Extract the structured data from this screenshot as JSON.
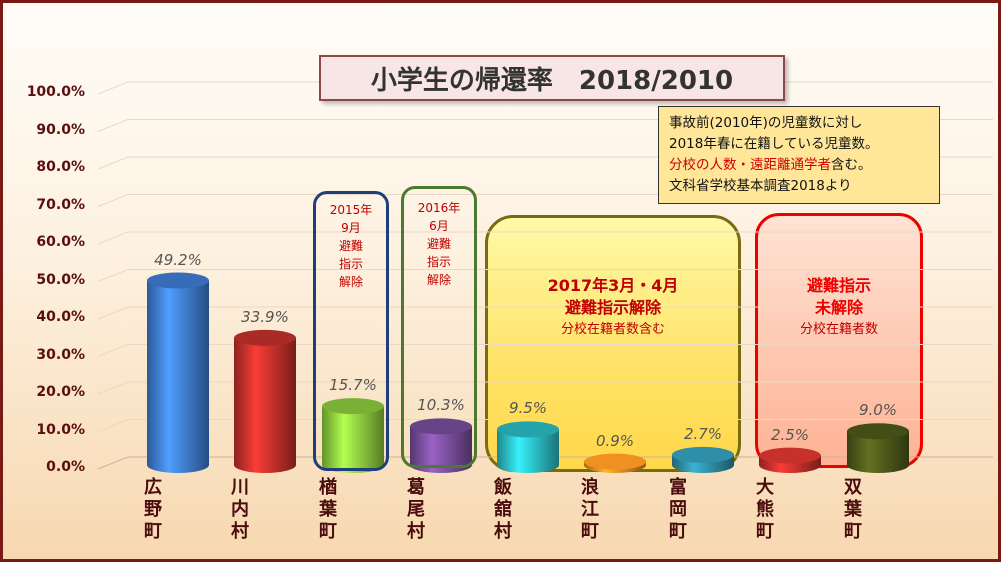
{
  "title": "小学生の帰還率　2018/2010",
  "note": {
    "line1": "事故前(2010年)の児童数に対し",
    "line2": "2018年春に在籍している児童数。",
    "line3_red": "分校の人数・遠距離通学者",
    "line3_tail": "含む。",
    "line4": "文科省学校基本調査2018より"
  },
  "annotations": {
    "a2015": "2015年\n9月\n避難\n指示\n解除",
    "a2016": "2016年\n6月\n避難\n指示\n解除",
    "a2017_main": "2017年3月・4月\n避難指示解除",
    "a2017_sub": "分校在籍者数含む",
    "unlifted_main": "避難指示\n未解除",
    "unlifted_sub": "分校在籍者数"
  },
  "colors": {
    "frame": "#7a1a14",
    "bars": [
      "#3f7fd8",
      "#c8312b",
      "#8fcf3f",
      "#7a4f9e",
      "#2cc0c8",
      "#f09020",
      "#2f8fa8",
      "#c8312b",
      "#4f5a1a"
    ]
  },
  "chart_data": {
    "type": "bar",
    "categories": [
      "広野町",
      "川内村",
      "楢葉町",
      "葛尾村",
      "飯舘村",
      "浪江町",
      "富岡町",
      "大熊町",
      "双葉町"
    ],
    "values": [
      49.2,
      33.9,
      15.7,
      10.3,
      9.5,
      0.9,
      2.7,
      2.5,
      9.0
    ],
    "value_labels": [
      "49.2%",
      "33.9%",
      "15.7%",
      "10.3%",
      "9.5%",
      "0.9%",
      "2.7%",
      "2.5%",
      "9.0%"
    ],
    "y_tick_labels": [
      "0.0%",
      "10.0%",
      "20.0%",
      "30.0%",
      "40.0%",
      "50.0%",
      "60.0%",
      "70.0%",
      "80.0%",
      "90.0%",
      "100.0%"
    ],
    "ylim": [
      0,
      100
    ],
    "grid": true,
    "title": "小学生の帰還率　2018/2010"
  }
}
